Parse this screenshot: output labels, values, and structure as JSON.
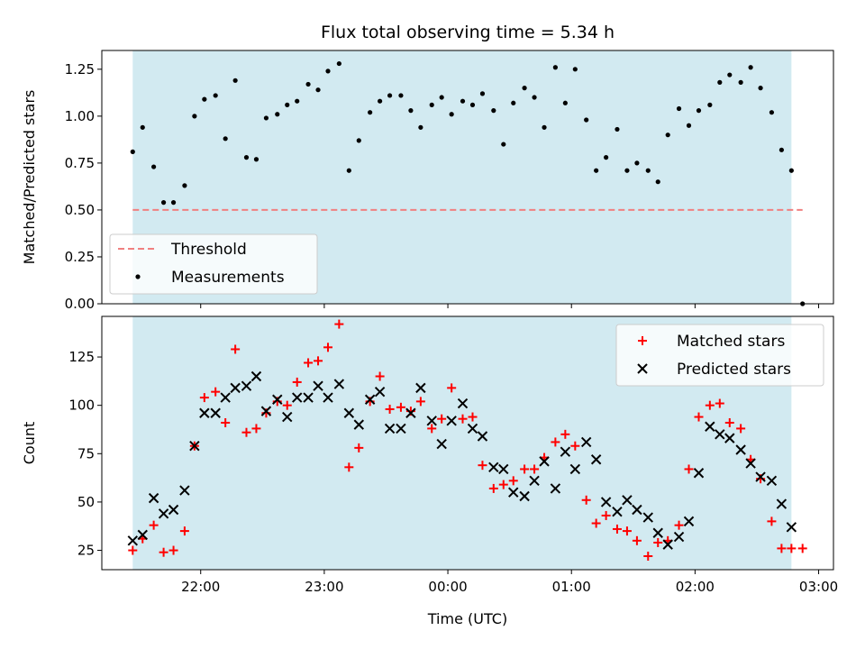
{
  "chart_data": {
    "type": "scatter",
    "title": "Flux total observing time = 5.34 h",
    "xlabel": "Time (UTC)",
    "x_ticks": [
      "22:00",
      "23:00",
      "00:00",
      "01:00",
      "02:00",
      "03:00"
    ],
    "x_tick_hours": [
      22,
      23,
      24,
      25,
      26,
      27
    ],
    "xlim": [
      21.2,
      27.12
    ],
    "observing_span": [
      21.45,
      26.78
    ],
    "shade_color": "#add8e6",
    "panels": [
      {
        "ylabel": "Matched/Predicted stars",
        "ylim": [
          0,
          1.35
        ],
        "y_ticks": [
          0.0,
          0.25,
          0.5,
          0.75,
          1.0,
          1.25
        ],
        "y_tick_labels": [
          "0.00",
          "0.25",
          "0.50",
          "0.75",
          "1.00",
          "1.25"
        ],
        "legend_position": "lower-left",
        "threshold": {
          "name": "Threshold",
          "value": 0.5,
          "x_range": [
            21.45,
            26.87
          ],
          "color": "#f08080"
        },
        "series": [
          {
            "name": "Measurements",
            "marker": "dot",
            "color": "#000000",
            "x": [
              21.45,
              21.53,
              21.62,
              21.7,
              21.78,
              21.87,
              21.95,
              22.03,
              22.12,
              22.2,
              22.28,
              22.37,
              22.45,
              22.53,
              22.62,
              22.7,
              22.78,
              22.87,
              22.95,
              23.03,
              23.12,
              23.2,
              23.28,
              23.37,
              23.45,
              23.53,
              23.62,
              23.7,
              23.78,
              23.87,
              23.95,
              24.03,
              24.12,
              24.2,
              24.28,
              24.37,
              24.45,
              24.53,
              24.62,
              24.7,
              24.78,
              24.87,
              24.95,
              25.03,
              25.12,
              25.2,
              25.28,
              25.37,
              25.45,
              25.53,
              25.62,
              25.7,
              25.78,
              25.87,
              25.95,
              26.03,
              26.12,
              26.2,
              26.28,
              26.37,
              26.45,
              26.53,
              26.62,
              26.7,
              26.78,
              26.87
            ],
            "y": [
              0.81,
              0.94,
              0.73,
              0.54,
              0.54,
              0.63,
              1.0,
              1.09,
              1.11,
              0.88,
              1.19,
              0.78,
              0.77,
              0.99,
              1.01,
              1.06,
              1.08,
              1.17,
              1.14,
              1.24,
              1.28,
              0.71,
              0.87,
              1.02,
              1.08,
              1.11,
              1.11,
              1.03,
              0.94,
              1.06,
              1.1,
              1.01,
              1.08,
              1.06,
              1.12,
              1.03,
              0.85,
              1.07,
              1.15,
              1.1,
              0.94,
              1.26,
              1.07,
              1.25,
              0.98,
              0.71,
              0.78,
              0.93,
              0.71,
              0.75,
              0.71,
              0.65,
              0.9,
              1.04,
              0.95,
              1.03,
              1.06,
              1.18,
              1.22,
              1.18,
              1.26,
              1.15,
              1.02,
              0.82,
              0.71,
              0.0
            ]
          }
        ]
      },
      {
        "ylabel": "Count",
        "ylim": [
          15,
          146
        ],
        "y_ticks": [
          25,
          50,
          75,
          100,
          125
        ],
        "y_tick_labels": [
          "25",
          "50",
          "75",
          "100",
          "125"
        ],
        "legend_position": "top-right",
        "series": [
          {
            "name": "Matched stars",
            "marker": "plus",
            "color": "#ff0000",
            "x": [
              21.45,
              21.53,
              21.62,
              21.7,
              21.78,
              21.87,
              21.95,
              22.03,
              22.12,
              22.2,
              22.28,
              22.37,
              22.45,
              22.53,
              22.62,
              22.7,
              22.78,
              22.87,
              22.95,
              23.03,
              23.12,
              23.2,
              23.28,
              23.37,
              23.45,
              23.53,
              23.62,
              23.7,
              23.78,
              23.87,
              23.95,
              24.03,
              24.12,
              24.2,
              24.28,
              24.37,
              24.45,
              24.53,
              24.62,
              24.7,
              24.78,
              24.87,
              24.95,
              25.03,
              25.12,
              25.2,
              25.28,
              25.37,
              25.45,
              25.53,
              25.62,
              25.7,
              25.78,
              25.87,
              25.95,
              26.03,
              26.12,
              26.2,
              26.28,
              26.37,
              26.45,
              26.53,
              26.62,
              26.7,
              26.78,
              26.87
            ],
            "y": [
              25,
              31,
              38,
              24,
              25,
              35,
              79,
              104,
              107,
              91,
              129,
              86,
              88,
              96,
              102,
              100,
              112,
              122,
              123,
              130,
              142,
              68,
              78,
              102,
              115,
              98,
              99,
              97,
              102,
              88,
              93,
              109,
              93,
              94,
              69,
              57,
              59,
              61,
              67,
              67,
              73,
              81,
              85,
              79,
              51,
              39,
              43,
              36,
              35,
              30,
              22,
              29,
              30,
              38,
              67,
              94,
              100,
              101,
              91,
              88,
              72,
              62,
              40,
              26,
              26,
              26
            ]
          },
          {
            "name": "Predicted stars",
            "marker": "x",
            "color": "#000000",
            "x": [
              21.45,
              21.53,
              21.62,
              21.7,
              21.78,
              21.87,
              21.95,
              22.03,
              22.12,
              22.2,
              22.28,
              22.37,
              22.45,
              22.53,
              22.62,
              22.7,
              22.78,
              22.87,
              22.95,
              23.03,
              23.12,
              23.2,
              23.28,
              23.37,
              23.45,
              23.53,
              23.62,
              23.7,
              23.78,
              23.87,
              23.95,
              24.03,
              24.12,
              24.2,
              24.28,
              24.37,
              24.45,
              24.53,
              24.62,
              24.7,
              24.78,
              24.87,
              24.95,
              25.03,
              25.12,
              25.2,
              25.28,
              25.37,
              25.45,
              25.53,
              25.62,
              25.7,
              25.78,
              25.87,
              25.95,
              26.03,
              26.12,
              26.2,
              26.28,
              26.37,
              26.45,
              26.53,
              26.62,
              26.7,
              26.78
            ],
            "y": [
              30,
              33,
              52,
              44,
              46,
              56,
              79,
              96,
              96,
              104,
              109,
              110,
              115,
              97,
              103,
              94,
              104,
              104,
              110,
              104,
              111,
              96,
              90,
              103,
              107,
              88,
              88,
              96,
              109,
              92,
              80,
              92,
              101,
              88,
              84,
              68,
              67,
              55,
              53,
              61,
              71,
              57,
              76,
              67,
              81,
              72,
              50,
              45,
              51,
              46,
              42,
              34,
              28,
              32,
              40,
              65,
              89,
              85,
              83,
              77,
              70,
              63,
              61,
              49,
              37
            ]
          }
        ]
      }
    ]
  }
}
